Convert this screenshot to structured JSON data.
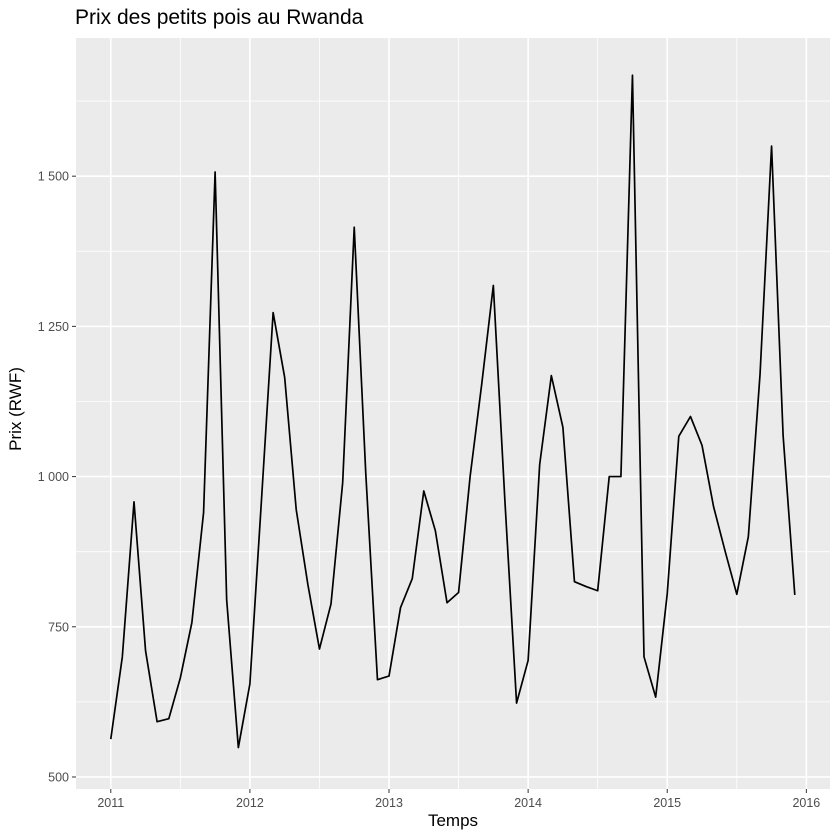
{
  "chart_data": {
    "type": "line",
    "title": "Prix des petits pois au Rwanda",
    "xlabel": "Temps",
    "ylabel": "Prix (RWF)",
    "xlim": [
      2010.75,
      2016.17
    ],
    "ylim": [
      480,
      1730
    ],
    "x_ticks": [
      {
        "value": 2011,
        "label": "2011"
      },
      {
        "value": 2012,
        "label": "2012"
      },
      {
        "value": 2013,
        "label": "2013"
      },
      {
        "value": 2014,
        "label": "2014"
      },
      {
        "value": 2015,
        "label": "2015"
      },
      {
        "value": 2016,
        "label": "2016"
      }
    ],
    "y_ticks": [
      {
        "value": 500,
        "label": "500"
      },
      {
        "value": 750,
        "label": "750"
      },
      {
        "value": 1000,
        "label": "1 000"
      },
      {
        "value": 1250,
        "label": "1 250"
      },
      {
        "value": 1500,
        "label": "1 500"
      }
    ],
    "grid": true,
    "background_color": "#ebebeb",
    "grid_color": "#ffffff",
    "line_color": "#000000",
    "series": [
      {
        "x": [
          2011.0,
          2011.083,
          2011.167,
          2011.25,
          2011.333,
          2011.417,
          2011.5,
          2011.583,
          2011.667,
          2011.75,
          2011.833,
          2011.917,
          2012.0,
          2012.083,
          2012.167,
          2012.25,
          2012.333,
          2012.417,
          2012.5,
          2012.583,
          2012.667,
          2012.75,
          2012.833,
          2012.917,
          2013.0,
          2013.083,
          2013.167,
          2013.25,
          2013.333,
          2013.417,
          2013.5,
          2013.583,
          2013.667,
          2013.75,
          2013.833,
          2013.917,
          2014.0,
          2014.083,
          2014.167,
          2014.25,
          2014.333,
          2014.417,
          2014.5,
          2014.583,
          2014.667,
          2014.75,
          2014.833,
          2014.917,
          2015.0,
          2015.083,
          2015.167,
          2015.25,
          2015.333,
          2015.417,
          2015.5,
          2015.583,
          2015.667,
          2015.75,
          2015.833,
          2015.917
        ],
        "y": [
          563,
          700,
          958,
          710,
          592,
          597,
          665,
          757,
          940,
          1507,
          795,
          549,
          655,
          960,
          1273,
          1165,
          945,
          820,
          713,
          788,
          990,
          1415,
          1005,
          662,
          668,
          782,
          830,
          976,
          910,
          790,
          807,
          1000,
          1155,
          1318,
          960,
          623,
          694,
          1020,
          1168,
          1082,
          825,
          817,
          810,
          1000,
          1000,
          1668,
          700,
          633,
          805,
          1067,
          1100,
          1052,
          950,
          875,
          804,
          900,
          1170,
          1550,
          1068,
          803
        ]
      }
    ]
  }
}
